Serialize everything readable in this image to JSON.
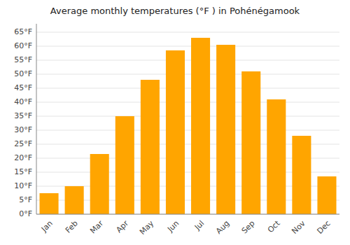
{
  "chart_data": {
    "type": "bar",
    "title": "Average monthly temperatures (°F ) in Pohénégamook",
    "categories": [
      "Jan",
      "Feb",
      "Mar",
      "Apr",
      "May",
      "Jun",
      "Jul",
      "Aug",
      "Sep",
      "Oct",
      "Nov",
      "Dec"
    ],
    "values": [
      7.5,
      10,
      21.5,
      35,
      48,
      58.5,
      63,
      60.5,
      51,
      41,
      28,
      13.5
    ],
    "color": "#FFA500",
    "ylim": [
      0,
      68
    ],
    "yticks": [
      {
        "value": 0,
        "label": "0°F"
      },
      {
        "value": 5,
        "label": "5°F"
      },
      {
        "value": 10,
        "label": "10°F"
      },
      {
        "value": 15,
        "label": "15°F"
      },
      {
        "value": 20,
        "label": "20°F"
      },
      {
        "value": 25,
        "label": "25°F"
      },
      {
        "value": 30,
        "label": "30°F"
      },
      {
        "value": 35,
        "label": "35°F"
      },
      {
        "value": 40,
        "label": "40°F"
      },
      {
        "value": 45,
        "label": "45°F"
      },
      {
        "value": 50,
        "label": "50°F"
      },
      {
        "value": 55,
        "label": "55°F"
      },
      {
        "value": 60,
        "label": "60°F"
      },
      {
        "value": 65,
        "label": "65°F"
      }
    ],
    "grid": true
  }
}
